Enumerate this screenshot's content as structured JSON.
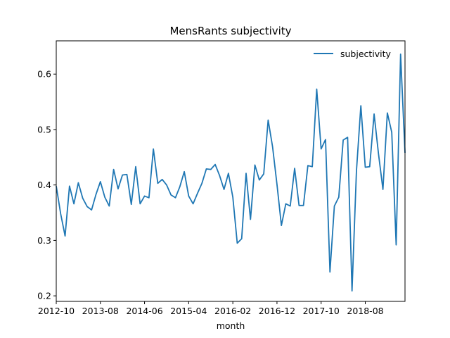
{
  "chart_data": {
    "type": "line",
    "title": "MensRants subjectivity",
    "xlabel": "month",
    "ylabel": "",
    "ylim": [
      0.19,
      0.66
    ],
    "y_ticks": [
      "0.2",
      "0.3",
      "0.4",
      "0.5",
      "0.6"
    ],
    "y_tick_values": [
      0.2,
      0.3,
      0.4,
      0.5,
      0.6
    ],
    "x_ticks": [
      "2012-10",
      "2013-08",
      "2014-06",
      "2015-04",
      "2016-02",
      "2016-12",
      "2017-10",
      "2018-08"
    ],
    "grid": false,
    "legend_position": "top-right",
    "series": [
      {
        "name": "subjectivity",
        "color": "#1f77b4",
        "x": [
          "2012-10",
          "2012-11",
          "2012-12",
          "2013-01",
          "2013-02",
          "2013-03",
          "2013-04",
          "2013-05",
          "2013-06",
          "2013-07",
          "2013-08",
          "2013-09",
          "2013-10",
          "2013-11",
          "2013-12",
          "2014-01",
          "2014-02",
          "2014-03",
          "2014-04",
          "2014-05",
          "2014-06",
          "2014-07",
          "2014-08",
          "2014-09",
          "2014-10",
          "2014-11",
          "2014-12",
          "2015-01",
          "2015-02",
          "2015-03",
          "2015-04",
          "2015-05",
          "2015-06",
          "2015-07",
          "2015-08",
          "2015-09",
          "2015-10",
          "2015-11",
          "2015-12",
          "2016-01",
          "2016-02",
          "2016-03",
          "2016-04",
          "2016-05",
          "2016-06",
          "2016-07",
          "2016-08",
          "2016-09",
          "2016-10",
          "2016-11",
          "2016-12",
          "2017-01",
          "2017-02",
          "2017-03",
          "2017-04",
          "2017-05",
          "2017-06",
          "2017-07",
          "2017-08",
          "2017-09",
          "2017-10",
          "2017-11",
          "2017-12",
          "2018-01",
          "2018-02",
          "2018-03",
          "2018-04",
          "2018-05",
          "2018-06",
          "2018-07",
          "2018-08",
          "2018-09",
          "2018-10",
          "2018-11",
          "2018-12",
          "2019-01",
          "2019-02",
          "2019-03",
          "2019-04",
          "2019-05"
        ],
        "values": [
          0.398,
          0.348,
          0.308,
          0.398,
          0.366,
          0.404,
          0.376,
          0.361,
          0.355,
          0.383,
          0.406,
          0.378,
          0.362,
          0.428,
          0.393,
          0.418,
          0.419,
          0.365,
          0.433,
          0.366,
          0.38,
          0.377,
          0.465,
          0.403,
          0.41,
          0.4,
          0.382,
          0.377,
          0.397,
          0.424,
          0.38,
          0.366,
          0.385,
          0.403,
          0.429,
          0.428,
          0.437,
          0.417,
          0.392,
          0.421,
          0.378,
          0.295,
          0.303,
          0.421,
          0.338,
          0.436,
          0.409,
          0.42,
          0.517,
          0.469,
          0.401,
          0.327,
          0.366,
          0.362,
          0.43,
          0.363,
          0.363,
          0.435,
          0.433,
          0.573,
          0.465,
          0.482,
          0.243,
          0.362,
          0.378,
          0.481,
          0.486,
          0.209,
          0.425,
          0.543,
          0.432,
          0.433,
          0.528,
          0.456,
          0.392,
          0.53,
          0.495,
          0.292,
          0.636,
          0.458
        ]
      }
    ]
  }
}
